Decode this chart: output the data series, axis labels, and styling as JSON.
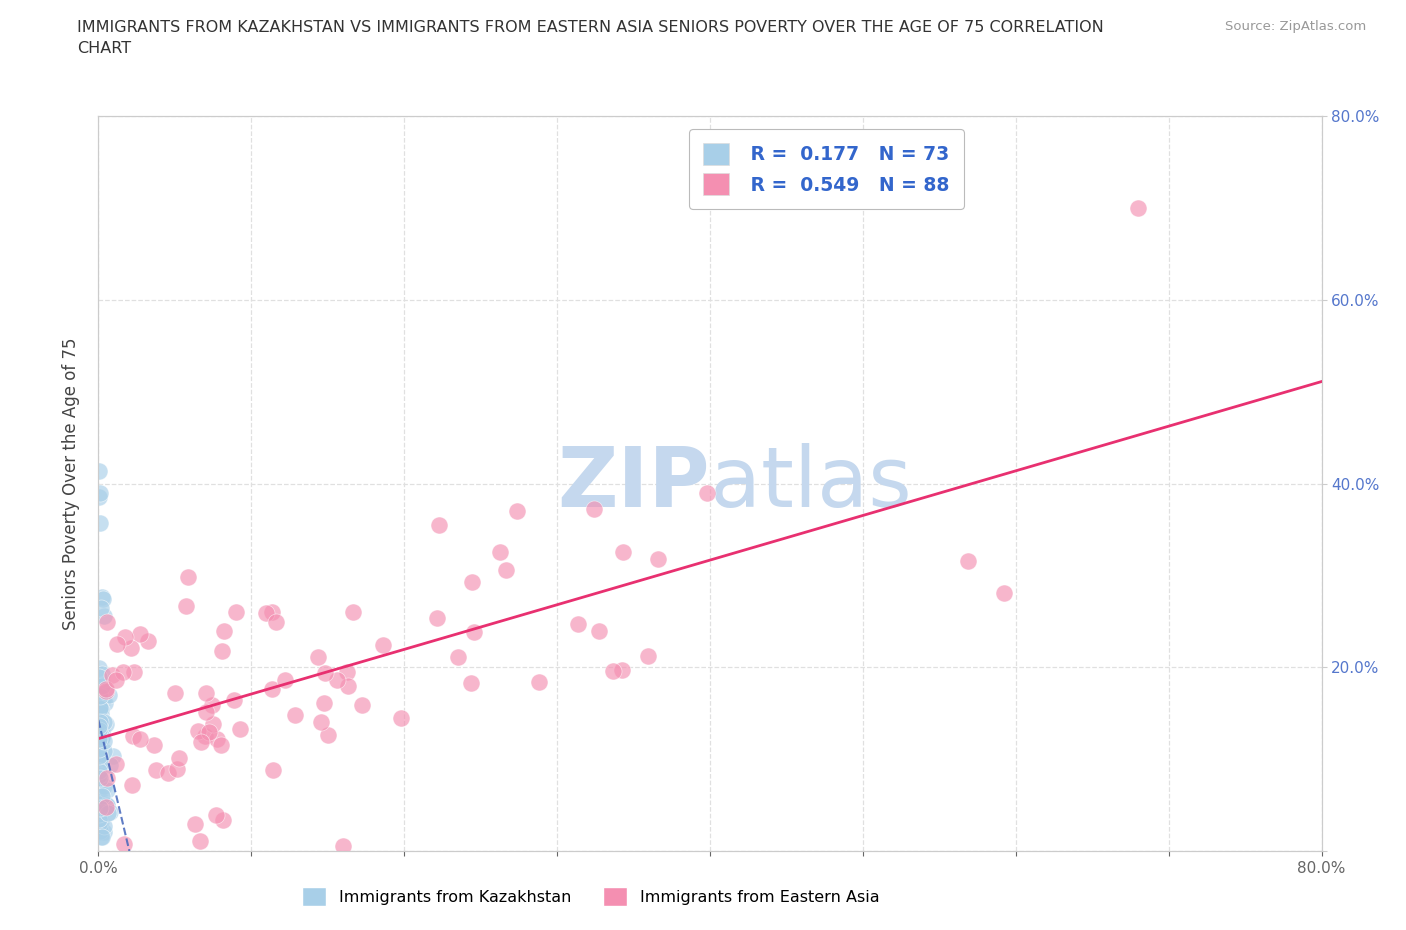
{
  "title_line1": "IMMIGRANTS FROM KAZAKHSTAN VS IMMIGRANTS FROM EASTERN ASIA SENIORS POVERTY OVER THE AGE OF 75 CORRELATION",
  "title_line2": "CHART",
  "source": "Source: ZipAtlas.com",
  "ylabel": "Seniors Poverty Over the Age of 75",
  "xlim": [
    0.0,
    0.8
  ],
  "ylim": [
    0.0,
    0.8
  ],
  "legend_label1": "Immigrants from Kazakhstan",
  "legend_label2": "Immigrants from Eastern Asia",
  "R1": 0.177,
  "N1": 73,
  "R2": 0.549,
  "N2": 88,
  "color1": "#a8cfe8",
  "color2": "#f48fb1",
  "trendline1_color": "#4466bb",
  "trendline2_color": "#e83070",
  "watermark_zip": "ZIP",
  "watermark_atlas": "atlas",
  "watermark_color_zip": "#c5d8ee",
  "watermark_color_atlas": "#c5d8ee",
  "background_color": "#ffffff",
  "grid_color": "#e0e0e0",
  "right_tick_color": "#5577cc",
  "title_fontsize": 11.5,
  "source_fontsize": 9.5,
  "tick_fontsize": 11
}
